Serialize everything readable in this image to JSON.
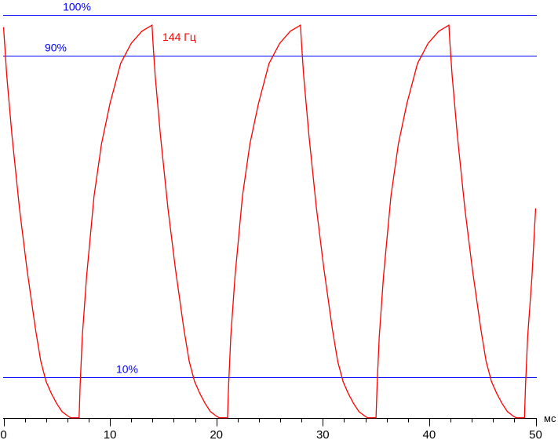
{
  "chart_data": {
    "type": "line",
    "title": "",
    "xlabel": "мс",
    "ylabel": "",
    "xlim": [
      0,
      50
    ],
    "ylim": [
      0,
      100
    ],
    "x_ticks": [
      0,
      10,
      20,
      30,
      40,
      50
    ],
    "x_minor_step": 2,
    "grid": false,
    "reference_lines": [
      {
        "label": "100%",
        "value": 100,
        "color": "#0000ff"
      },
      {
        "label": "90%",
        "value": 90,
        "color": "#0000ff"
      },
      {
        "label": "10%",
        "value": 10,
        "color": "#0000ff"
      }
    ],
    "annotation": {
      "text": "144 Гц",
      "color": "#ff0000"
    },
    "series": [
      {
        "color": "#ff0000",
        "x": [
          0,
          0.1,
          0.3,
          0.8,
          1.5,
          2.2,
          3,
          3.5,
          4,
          4.5,
          5,
          5.5,
          6,
          6.3,
          7.1,
          7.2,
          7.4,
          7.8,
          8.5,
          9.2,
          10,
          11,
          12,
          13,
          13.95,
          14.05,
          14.25,
          14.75,
          15.45,
          16.15,
          16.95,
          17.45,
          17.95,
          18.45,
          18.95,
          19.45,
          19.95,
          20.25,
          21.05,
          21.15,
          21.35,
          21.75,
          22.45,
          23.15,
          23.95,
          24.95,
          25.95,
          26.95,
          27.9,
          28.0,
          28.2,
          28.7,
          29.4,
          30.1,
          30.9,
          31.4,
          31.9,
          32.4,
          32.9,
          33.4,
          33.9,
          34.2,
          35.0,
          35.1,
          35.3,
          35.7,
          36.4,
          37.1,
          37.9,
          38.9,
          39.9,
          40.9,
          41.85,
          41.95,
          42.15,
          42.65,
          43.35,
          44.05,
          44.85,
          45.35,
          45.85,
          46.35,
          46.85,
          47.35,
          47.85,
          48.15,
          48.95,
          49.05,
          49.25,
          49.65,
          50.0
        ],
        "y": [
          97,
          93,
          85,
          70,
          52,
          37,
          22,
          14,
          9,
          6,
          3.5,
          1.5,
          0.5,
          0,
          0,
          8,
          20,
          35,
          55,
          68,
          78,
          88,
          93,
          96,
          97.5,
          93,
          85,
          70,
          52,
          37,
          22,
          14,
          9,
          6,
          3.5,
          1.5,
          0.5,
          0,
          0,
          8,
          20,
          35,
          55,
          68,
          78,
          88,
          93,
          96,
          97.5,
          93,
          85,
          70,
          52,
          37,
          22,
          14,
          9,
          6,
          3.5,
          1.5,
          0.5,
          0,
          0,
          8,
          20,
          35,
          55,
          68,
          78,
          88,
          93,
          96,
          97.5,
          93,
          85,
          70,
          52,
          37,
          22,
          14,
          9,
          6,
          3.5,
          1.5,
          0.5,
          0,
          0,
          8,
          20,
          35,
          52
        ]
      }
    ]
  }
}
